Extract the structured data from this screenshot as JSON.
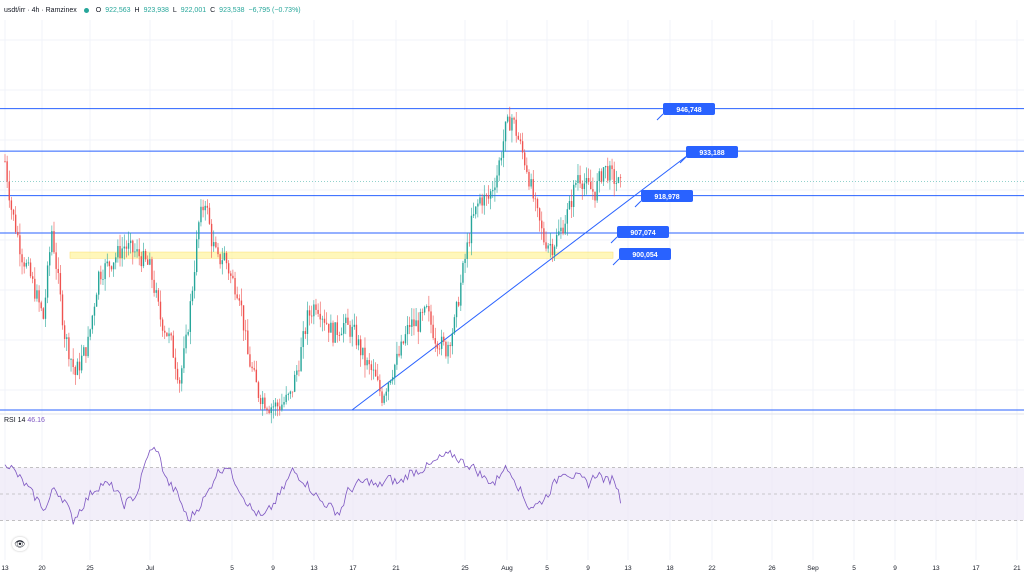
{
  "header": {
    "symbol": "usdt/irr · 4h · Ramzinex",
    "o_label": "O",
    "o_value": "922,563",
    "h_label": "H",
    "h_value": "923,938",
    "l_label": "L",
    "l_value": "922,001",
    "c_label": "C",
    "c_value": "923,538",
    "change": "−6,795 (−0.73%)"
  },
  "rsi_header": {
    "label": "RSI 14",
    "value": "46.16"
  },
  "colors": {
    "up": "#26a69a",
    "down": "#ef5350",
    "level_line": "#2962ff",
    "rsi_line": "#7e57c2",
    "rsi_band": "#ede7f6",
    "zone": "#fff59d"
  },
  "icons": {
    "visibility": "eye-icon"
  },
  "chart_data": [
    {
      "type": "candlestick",
      "symbol": "usdt/irr",
      "interval": "4h",
      "exchange": "Ramzinex",
      "x_ticks": [
        "13",
        "20",
        "25",
        "Jul",
        "5",
        "9",
        "13",
        "17",
        "21",
        "25",
        "Aug",
        "5",
        "9",
        "13",
        "18",
        "22",
        "26",
        "Sep",
        "5",
        "9",
        "13",
        "17",
        "21",
        "25"
      ],
      "ohlc_last": {
        "open": 922563,
        "high": 923938,
        "low": 922001,
        "close": 923538,
        "change": -6795,
        "change_pct": -0.73
      },
      "horizontal_levels": [
        946748,
        933188,
        918978,
        907074,
        900054
      ],
      "price_labels": [
        "946,748",
        "933,188",
        "918,978",
        "907,074",
        "900,054"
      ],
      "support_zone": [
        899000,
        901000
      ],
      "trendline": "ascending support from the Jul 21 low through mid-Aug",
      "price_waypoints": [
        [
          0,
          930000
        ],
        [
          3,
          915000
        ],
        [
          8,
          900000
        ],
        [
          12,
          893000
        ],
        [
          18,
          880000
        ],
        [
          22,
          908000
        ],
        [
          28,
          875000
        ],
        [
          33,
          862000
        ],
        [
          39,
          872000
        ],
        [
          44,
          894000
        ],
        [
          50,
          898000
        ],
        [
          56,
          903000
        ],
        [
          63,
          900000
        ],
        [
          68,
          896000
        ],
        [
          73,
          880000
        ],
        [
          78,
          872000
        ],
        [
          82,
          860000
        ],
        [
          85,
          872000
        ],
        [
          88,
          890000
        ],
        [
          91,
          910000
        ],
        [
          94,
          918000
        ],
        [
          97,
          905000
        ],
        [
          100,
          898000
        ],
        [
          103,
          900000
        ],
        [
          106,
          893000
        ],
        [
          110,
          888000
        ],
        [
          114,
          868000
        ],
        [
          119,
          856000
        ],
        [
          124,
          852000
        ],
        [
          129,
          852000
        ],
        [
          134,
          855000
        ],
        [
          138,
          866000
        ],
        [
          142,
          880000
        ],
        [
          146,
          885000
        ],
        [
          150,
          880000
        ],
        [
          154,
          875000
        ],
        [
          159,
          878000
        ],
        [
          164,
          875000
        ],
        [
          169,
          866000
        ],
        [
          173,
          862000
        ],
        [
          177,
          855000
        ],
        [
          181,
          862000
        ],
        [
          185,
          868000
        ],
        [
          190,
          878000
        ],
        [
          194,
          878000
        ],
        [
          198,
          882000
        ],
        [
          202,
          874000
        ],
        [
          207,
          870000
        ],
        [
          211,
          878000
        ],
        [
          215,
          895000
        ],
        [
          219,
          910000
        ],
        [
          223,
          918000
        ],
        [
          227,
          918000
        ],
        [
          231,
          926000
        ],
        [
          235,
          940000
        ],
        [
          238,
          944000
        ],
        [
          241,
          937000
        ],
        [
          245,
          928000
        ],
        [
          249,
          915000
        ],
        [
          253,
          905000
        ],
        [
          257,
          903000
        ],
        [
          261,
          908000
        ],
        [
          265,
          915000
        ],
        [
          269,
          926000
        ],
        [
          273,
          922000
        ],
        [
          277,
          920000
        ],
        [
          281,
          928000
        ],
        [
          285,
          925000
        ],
        [
          289,
          922000
        ]
      ],
      "rsi": {
        "period": 14,
        "last": 46.16,
        "bands": [
          70,
          50,
          30
        ],
        "waypoints": [
          [
            0,
            75
          ],
          [
            4,
            68
          ],
          [
            9,
            58
          ],
          [
            14,
            48
          ],
          [
            19,
            38
          ],
          [
            23,
            55
          ],
          [
            28,
            45
          ],
          [
            32,
            30
          ],
          [
            36,
            40
          ],
          [
            41,
            52
          ],
          [
            46,
            58
          ],
          [
            51,
            55
          ],
          [
            56,
            42
          ],
          [
            62,
            50
          ],
          [
            67,
            80
          ],
          [
            71,
            85
          ],
          [
            76,
            60
          ],
          [
            81,
            50
          ],
          [
            86,
            30
          ],
          [
            90,
            38
          ],
          [
            95,
            50
          ],
          [
            99,
            65
          ],
          [
            104,
            72
          ],
          [
            108,
            60
          ],
          [
            112,
            48
          ],
          [
            116,
            38
          ],
          [
            121,
            32
          ],
          [
            126,
            42
          ],
          [
            131,
            55
          ],
          [
            135,
            68
          ],
          [
            139,
            62
          ],
          [
            143,
            55
          ],
          [
            148,
            45
          ],
          [
            153,
            40
          ],
          [
            157,
            35
          ],
          [
            161,
            52
          ],
          [
            166,
            58
          ],
          [
            171,
            60
          ],
          [
            175,
            55
          ],
          [
            180,
            62
          ],
          [
            185,
            58
          ],
          [
            190,
            66
          ],
          [
            195,
            68
          ],
          [
            200,
            72
          ],
          [
            205,
            78
          ],
          [
            210,
            80
          ],
          [
            215,
            74
          ],
          [
            220,
            70
          ],
          [
            225,
            62
          ],
          [
            230,
            58
          ],
          [
            234,
            70
          ],
          [
            238,
            66
          ],
          [
            242,
            52
          ],
          [
            246,
            40
          ],
          [
            250,
            42
          ],
          [
            254,
            48
          ],
          [
            258,
            58
          ],
          [
            262,
            68
          ],
          [
            266,
            64
          ],
          [
            270,
            62
          ],
          [
            274,
            58
          ],
          [
            278,
            66
          ],
          [
            282,
            60
          ],
          [
            286,
            62
          ],
          [
            289,
            46
          ]
        ]
      }
    }
  ]
}
